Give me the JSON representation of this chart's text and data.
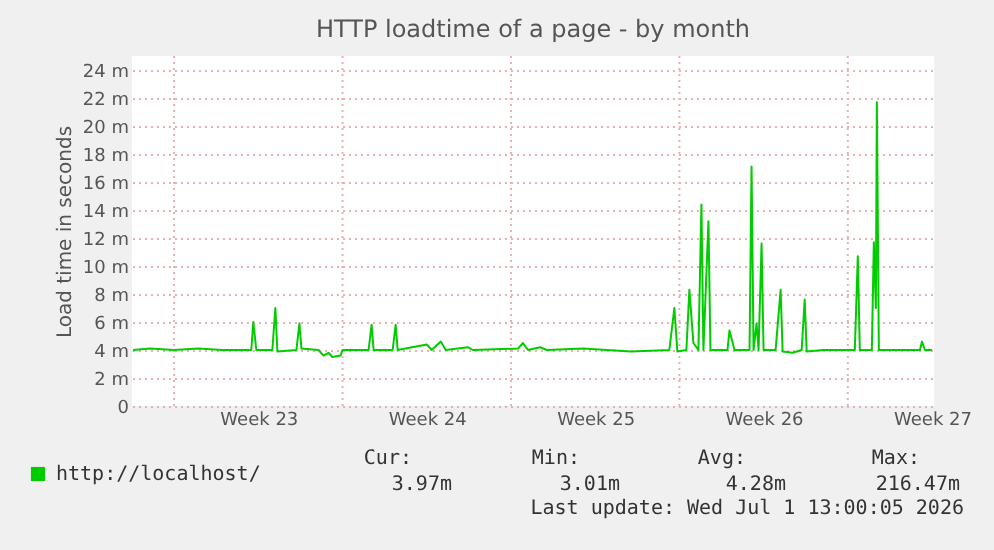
{
  "chart_data": {
    "type": "line",
    "title": "HTTP loadtime of a page - by month",
    "ylabel": "Load time in seconds",
    "x": [
      "2026-05-30T07:00",
      "2026-05-31T00:00",
      "2026-06-01T00:00",
      "2026-06-02T00:00",
      "2026-06-03T00:00",
      "2026-06-04T05:00",
      "2026-06-04T07:00",
      "2026-06-04T10:00",
      "2026-06-05T02:00",
      "2026-06-05T05:00",
      "2026-06-05T07:00",
      "2026-06-06T02:00",
      "2026-06-06T05:00",
      "2026-06-06T07:00",
      "2026-06-07T00:00",
      "2026-06-07T05:00",
      "2026-06-07T10:00",
      "2026-06-07T14:00",
      "2026-06-07T22:00",
      "2026-06-08T00:00",
      "2026-06-09T02:00",
      "2026-06-09T05:00",
      "2026-06-09T07:00",
      "2026-06-10T02:00",
      "2026-06-10T05:00",
      "2026-06-10T07:00",
      "2026-06-11T12:00",
      "2026-06-11T17:00",
      "2026-06-12T02:00",
      "2026-06-12T07:00",
      "2026-06-13T05:00",
      "2026-06-13T10:00",
      "2026-06-15T07:00",
      "2026-06-15T12:00",
      "2026-06-15T17:00",
      "2026-06-16T05:00",
      "2026-06-16T12:00",
      "2026-06-18T00:00",
      "2026-06-19T00:00",
      "2026-06-20T00:00",
      "2026-06-21T14:00",
      "2026-06-21T19:00",
      "2026-06-21T22:00",
      "2026-06-22T07:00",
      "2026-06-22T10:00",
      "2026-06-22T14:00",
      "2026-06-22T19:00",
      "2026-06-22T22:00",
      "2026-06-23T00:00",
      "2026-06-23T05:00",
      "2026-06-23T07:00",
      "2026-06-24T00:00",
      "2026-06-24T02:00",
      "2026-06-24T07:00",
      "2026-06-24T22:00",
      "2026-06-25T00:00",
      "2026-06-25T02:00",
      "2026-06-25T05:00",
      "2026-06-25T07:00",
      "2026-06-25T10:00",
      "2026-06-25T12:00",
      "2026-06-26T00:00",
      "2026-06-26T05:00",
      "2026-06-26T07:00",
      "2026-06-26T17:00",
      "2026-06-27T02:00",
      "2026-06-27T05:00",
      "2026-06-27T07:00",
      "2026-06-28T00:00",
      "2026-06-29T07:00",
      "2026-06-29T10:00",
      "2026-06-29T12:00",
      "2026-06-30T00:00",
      "2026-06-30T02:00",
      "2026-06-30T04:00",
      "2026-06-30T05:00",
      "2026-06-30T07:00",
      "2026-07-01T00:00",
      "2026-07-02T00:00",
      "2026-07-02T02:00",
      "2026-07-02T05:00",
      "2026-07-02T12:00"
    ],
    "series": [
      {
        "name": "http://localhost/",
        "color": "#00cc00",
        "values": [
          4.0,
          4.1,
          4.0,
          4.1,
          4.0,
          4.0,
          6.0,
          4.0,
          4.0,
          7.0,
          3.9,
          4.0,
          5.9,
          4.1,
          4.0,
          3.6,
          3.8,
          3.5,
          3.6,
          4.0,
          4.0,
          5.8,
          4.0,
          4.0,
          5.8,
          4.0,
          4.4,
          4.0,
          4.6,
          4.0,
          4.2,
          4.0,
          4.1,
          4.5,
          4.0,
          4.2,
          4.0,
          4.1,
          4.0,
          3.9,
          4.0,
          7.0,
          3.9,
          4.0,
          8.3,
          4.5,
          4.0,
          14.4,
          4.0,
          13.2,
          4.0,
          4.0,
          5.4,
          4.0,
          4.0,
          17.1,
          4.0,
          5.9,
          4.0,
          11.6,
          4.0,
          4.0,
          8.3,
          3.9,
          3.8,
          4.0,
          7.6,
          3.9,
          4.0,
          4.0,
          10.7,
          4.0,
          4.0,
          11.7,
          7.0,
          21.7,
          4.0,
          4.0,
          4.0,
          4.6,
          4.0,
          4.0
        ]
      }
    ],
    "xlim": [
      "2026-05-30T06:00",
      "2026-07-02T14:00"
    ],
    "xticks": [
      {
        "value": "2026-06-01T00:00",
        "label": null
      },
      {
        "value": "2026-06-04T12:00",
        "label": "Week 23"
      },
      {
        "value": "2026-06-08T00:00",
        "label": null
      },
      {
        "value": "2026-06-11T12:00",
        "label": "Week 24"
      },
      {
        "value": "2026-06-15T00:00",
        "label": null
      },
      {
        "value": "2026-06-18T12:00",
        "label": "Week 25"
      },
      {
        "value": "2026-06-22T00:00",
        "label": null
      },
      {
        "value": "2026-06-25T12:00",
        "label": "Week 26"
      },
      {
        "value": "2026-06-29T00:00",
        "label": null
      },
      {
        "value": "2026-07-02T12:00",
        "label": "Week 27"
      }
    ],
    "ylim": [
      0,
      25
    ],
    "yticks": [
      0,
      {
        "value": 2,
        "label": "2 m"
      },
      {
        "value": 4,
        "label": "4 m"
      },
      {
        "value": 6,
        "label": "6 m"
      },
      {
        "value": 8,
        "label": "8 m"
      },
      {
        "value": 10,
        "label": "10 m"
      },
      {
        "value": 12,
        "label": "12 m"
      },
      {
        "value": 14,
        "label": "14 m"
      },
      {
        "value": 16,
        "label": "16 m"
      },
      {
        "value": 18,
        "label": "18 m"
      },
      {
        "value": 20,
        "label": "20 m"
      },
      {
        "value": 22,
        "label": "22 m"
      },
      {
        "value": 24,
        "label": "24 m"
      }
    ],
    "grid": true,
    "legend": "bottom left",
    "marker": "none",
    "line_style": "solid",
    "annotations": [
      "Cur:",
      "Min:",
      "Avg:",
      "Max:",
      "3.97m",
      "3.01m",
      "4.28m",
      "216.47m",
      "Last update: Wed Jul  1 13:00:05 2026"
    ]
  }
}
